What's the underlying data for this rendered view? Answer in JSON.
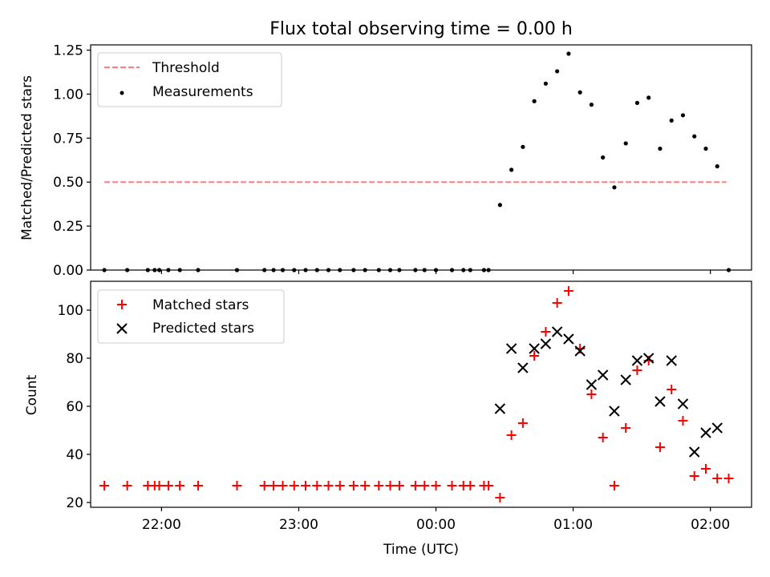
{
  "figure": {
    "title": "Flux total observing time = 0.00 h",
    "xlabel": "Time (UTC)"
  },
  "chart_data": [
    {
      "type": "scatter",
      "panel": "top",
      "ylabel": "Matched/Predicted stars",
      "ylim": [
        0,
        1.28
      ],
      "yticks": [
        "0.00",
        "0.25",
        "0.50",
        "0.75",
        "1.00",
        "1.25"
      ],
      "xlim": [
        "21:29",
        "02:18"
      ],
      "grid": false,
      "legend_position": "upper left",
      "threshold": {
        "name": "Threshold",
        "value": 0.5,
        "x_start": "21:35",
        "x_end": "02:07",
        "color": "#ff7f7f",
        "style": "dashed"
      },
      "series": [
        {
          "name": "Measurements",
          "color": "#000000",
          "marker": "dot",
          "points": [
            {
              "x": "21:35",
              "y": 0
            },
            {
              "x": "21:45",
              "y": 0
            },
            {
              "x": "21:54",
              "y": 0
            },
            {
              "x": "21:57",
              "y": 0
            },
            {
              "x": "21:59",
              "y": 0
            },
            {
              "x": "22:03",
              "y": 0
            },
            {
              "x": "22:08",
              "y": 0
            },
            {
              "x": "22:16",
              "y": 0
            },
            {
              "x": "22:33",
              "y": 0
            },
            {
              "x": "22:45",
              "y": 0
            },
            {
              "x": "22:49",
              "y": 0
            },
            {
              "x": "22:53",
              "y": 0
            },
            {
              "x": "22:58",
              "y": 0
            },
            {
              "x": "23:03",
              "y": 0
            },
            {
              "x": "23:08",
              "y": 0
            },
            {
              "x": "23:13",
              "y": 0
            },
            {
              "x": "23:18",
              "y": 0
            },
            {
              "x": "23:24",
              "y": 0
            },
            {
              "x": "23:29",
              "y": 0
            },
            {
              "x": "23:35",
              "y": 0
            },
            {
              "x": "23:40",
              "y": 0
            },
            {
              "x": "23:44",
              "y": 0
            },
            {
              "x": "23:51",
              "y": 0
            },
            {
              "x": "23:55",
              "y": 0
            },
            {
              "x": "00:00",
              "y": 0
            },
            {
              "x": "00:07",
              "y": 0
            },
            {
              "x": "00:12",
              "y": 0
            },
            {
              "x": "00:15",
              "y": 0
            },
            {
              "x": "00:21",
              "y": 0
            },
            {
              "x": "00:23",
              "y": 0
            },
            {
              "x": "00:28",
              "y": 0.37
            },
            {
              "x": "00:33",
              "y": 0.57
            },
            {
              "x": "00:38",
              "y": 0.7
            },
            {
              "x": "00:43",
              "y": 0.96
            },
            {
              "x": "00:48",
              "y": 1.06
            },
            {
              "x": "00:53",
              "y": 1.13
            },
            {
              "x": "00:58",
              "y": 1.23
            },
            {
              "x": "01:03",
              "y": 1.01
            },
            {
              "x": "01:08",
              "y": 0.94
            },
            {
              "x": "01:13",
              "y": 0.64
            },
            {
              "x": "01:18",
              "y": 0.47
            },
            {
              "x": "01:23",
              "y": 0.72
            },
            {
              "x": "01:28",
              "y": 0.95
            },
            {
              "x": "01:33",
              "y": 0.98
            },
            {
              "x": "01:38",
              "y": 0.69
            },
            {
              "x": "01:43",
              "y": 0.85
            },
            {
              "x": "01:48",
              "y": 0.88
            },
            {
              "x": "01:53",
              "y": 0.76
            },
            {
              "x": "01:58",
              "y": 0.69
            },
            {
              "x": "02:03",
              "y": 0.59
            },
            {
              "x": "02:08",
              "y": 0
            }
          ]
        }
      ]
    },
    {
      "type": "scatter",
      "panel": "bottom",
      "ylabel": "Count",
      "ylim": [
        18,
        112
      ],
      "yticks": [
        "20",
        "40",
        "60",
        "80",
        "100"
      ],
      "xlim": [
        "21:29",
        "02:18"
      ],
      "xticks": [
        "22:00",
        "23:00",
        "00:00",
        "01:00",
        "02:00"
      ],
      "grid": false,
      "legend_position": "upper left",
      "series": [
        {
          "name": "Matched stars",
          "color": "#ff0000",
          "marker": "plus",
          "points": [
            {
              "x": "21:35",
              "y": 27
            },
            {
              "x": "21:45",
              "y": 27
            },
            {
              "x": "21:54",
              "y": 27
            },
            {
              "x": "21:57",
              "y": 27
            },
            {
              "x": "21:59",
              "y": 27
            },
            {
              "x": "22:03",
              "y": 27
            },
            {
              "x": "22:08",
              "y": 27
            },
            {
              "x": "22:16",
              "y": 27
            },
            {
              "x": "22:33",
              "y": 27
            },
            {
              "x": "22:45",
              "y": 27
            },
            {
              "x": "22:49",
              "y": 27
            },
            {
              "x": "22:53",
              "y": 27
            },
            {
              "x": "22:58",
              "y": 27
            },
            {
              "x": "23:03",
              "y": 27
            },
            {
              "x": "23:08",
              "y": 27
            },
            {
              "x": "23:13",
              "y": 27
            },
            {
              "x": "23:18",
              "y": 27
            },
            {
              "x": "23:24",
              "y": 27
            },
            {
              "x": "23:29",
              "y": 27
            },
            {
              "x": "23:35",
              "y": 27
            },
            {
              "x": "23:40",
              "y": 27
            },
            {
              "x": "23:44",
              "y": 27
            },
            {
              "x": "23:51",
              "y": 27
            },
            {
              "x": "23:55",
              "y": 27
            },
            {
              "x": "00:00",
              "y": 27
            },
            {
              "x": "00:07",
              "y": 27
            },
            {
              "x": "00:12",
              "y": 27
            },
            {
              "x": "00:15",
              "y": 27
            },
            {
              "x": "00:21",
              "y": 27
            },
            {
              "x": "00:23",
              "y": 27
            },
            {
              "x": "00:28",
              "y": 22
            },
            {
              "x": "00:33",
              "y": 48
            },
            {
              "x": "00:38",
              "y": 53
            },
            {
              "x": "00:43",
              "y": 81
            },
            {
              "x": "00:48",
              "y": 91
            },
            {
              "x": "00:53",
              "y": 103
            },
            {
              "x": "00:58",
              "y": 108
            },
            {
              "x": "01:03",
              "y": 84
            },
            {
              "x": "01:08",
              "y": 65
            },
            {
              "x": "01:13",
              "y": 47
            },
            {
              "x": "01:18",
              "y": 27
            },
            {
              "x": "01:23",
              "y": 51
            },
            {
              "x": "01:28",
              "y": 75
            },
            {
              "x": "01:33",
              "y": 79
            },
            {
              "x": "01:38",
              "y": 43
            },
            {
              "x": "01:43",
              "y": 67
            },
            {
              "x": "01:48",
              "y": 54
            },
            {
              "x": "01:53",
              "y": 31
            },
            {
              "x": "01:58",
              "y": 34
            },
            {
              "x": "02:03",
              "y": 30
            },
            {
              "x": "02:08",
              "y": 30
            }
          ]
        },
        {
          "name": "Predicted stars",
          "color": "#000000",
          "marker": "x",
          "points": [
            {
              "x": "00:28",
              "y": 59
            },
            {
              "x": "00:33",
              "y": 84
            },
            {
              "x": "00:38",
              "y": 76
            },
            {
              "x": "00:43",
              "y": 84
            },
            {
              "x": "00:48",
              "y": 86
            },
            {
              "x": "00:53",
              "y": 91
            },
            {
              "x": "00:58",
              "y": 88
            },
            {
              "x": "01:03",
              "y": 83
            },
            {
              "x": "01:08",
              "y": 69
            },
            {
              "x": "01:13",
              "y": 73
            },
            {
              "x": "01:18",
              "y": 58
            },
            {
              "x": "01:23",
              "y": 71
            },
            {
              "x": "01:28",
              "y": 79
            },
            {
              "x": "01:33",
              "y": 80
            },
            {
              "x": "01:38",
              "y": 62
            },
            {
              "x": "01:43",
              "y": 79
            },
            {
              "x": "01:48",
              "y": 61
            },
            {
              "x": "01:53",
              "y": 41
            },
            {
              "x": "01:58",
              "y": 49
            },
            {
              "x": "02:03",
              "y": 51
            }
          ]
        }
      ]
    }
  ]
}
